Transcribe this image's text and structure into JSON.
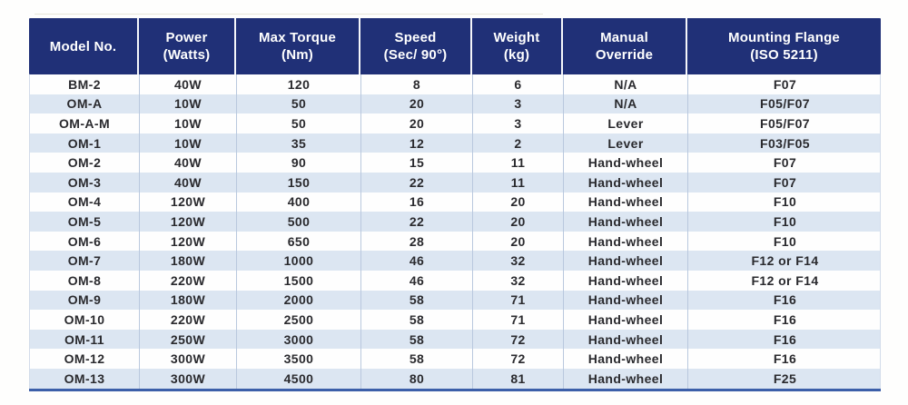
{
  "colors": {
    "header_bg": "#203077",
    "header_text": "#ffffff",
    "row_bg": "#fefefe",
    "row_alt_bg": "#dce6f2",
    "body_text": "#2a2a2e",
    "divider": "#b9c8de",
    "bottom_border": "#3c5fa9"
  },
  "table": {
    "columns": [
      {
        "key": "model",
        "line1": "Model No.",
        "line2": ""
      },
      {
        "key": "power",
        "line1": "Power",
        "line2": "(Watts)"
      },
      {
        "key": "torque",
        "line1": "Max Torque",
        "line2": "(Nm)"
      },
      {
        "key": "speed",
        "line1": "Speed",
        "line2": "(Sec/ 90°)"
      },
      {
        "key": "weight",
        "line1": "Weight",
        "line2": "(kg)"
      },
      {
        "key": "override",
        "line1": "Manual",
        "line2": "Override"
      },
      {
        "key": "flange",
        "line1": "Mounting Flange",
        "line2": "(ISO 5211)"
      }
    ],
    "rows": [
      [
        "BM-2",
        "40W",
        "120",
        "8",
        "6",
        "N/A",
        "F07"
      ],
      [
        "OM-A",
        "10W",
        "50",
        "20",
        "3",
        "N/A",
        "F05/F07"
      ],
      [
        "OM-A-M",
        "10W",
        "50",
        "20",
        "3",
        "Lever",
        "F05/F07"
      ],
      [
        "OM-1",
        "10W",
        "35",
        "12",
        "2",
        "Lever",
        "F03/F05"
      ],
      [
        "OM-2",
        "40W",
        "90",
        "15",
        "11",
        "Hand-wheel",
        "F07"
      ],
      [
        "OM-3",
        "40W",
        "150",
        "22",
        "11",
        "Hand-wheel",
        "F07"
      ],
      [
        "OM-4",
        "120W",
        "400",
        "16",
        "20",
        "Hand-wheel",
        "F10"
      ],
      [
        "OM-5",
        "120W",
        "500",
        "22",
        "20",
        "Hand-wheel",
        "F10"
      ],
      [
        "OM-6",
        "120W",
        "650",
        "28",
        "20",
        "Hand-wheel",
        "F10"
      ],
      [
        "OM-7",
        "180W",
        "1000",
        "46",
        "32",
        "Hand-wheel",
        "F12 or F14"
      ],
      [
        "OM-8",
        "220W",
        "1500",
        "46",
        "32",
        "Hand-wheel",
        "F12 or F14"
      ],
      [
        "OM-9",
        "180W",
        "2000",
        "58",
        "71",
        "Hand-wheel",
        "F16"
      ],
      [
        "OM-10",
        "220W",
        "2500",
        "58",
        "71",
        "Hand-wheel",
        "F16"
      ],
      [
        "OM-11",
        "250W",
        "3000",
        "58",
        "72",
        "Hand-wheel",
        "F16"
      ],
      [
        "OM-12",
        "300W",
        "3500",
        "58",
        "72",
        "Hand-wheel",
        "F16"
      ],
      [
        "OM-13",
        "300W",
        "4500",
        "80",
        "81",
        "Hand-wheel",
        "F25"
      ]
    ]
  }
}
